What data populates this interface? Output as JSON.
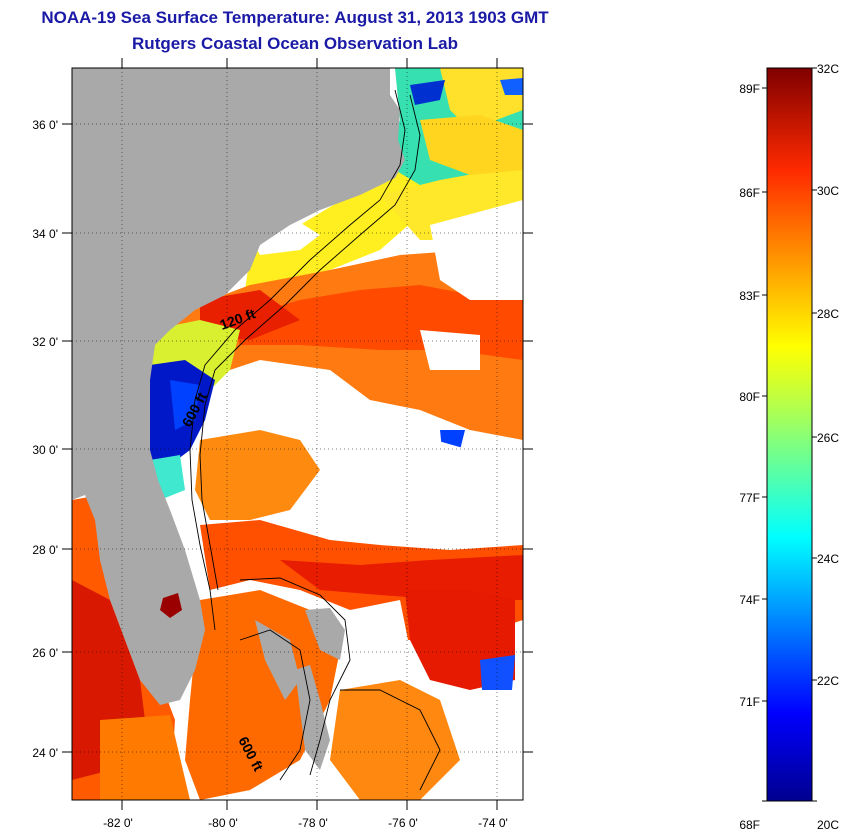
{
  "header": {
    "title": "NOAA-19 Sea Surface Temperature:  August 31, 2013 1903 GMT",
    "subtitle": "Rutgers Coastal Ocean Observation Lab"
  },
  "map": {
    "lon_labels": [
      "-82 0'",
      "-80 0'",
      "-78 0'",
      "-76 0'",
      "-74 0'"
    ],
    "lat_labels": [
      "36 0'",
      "34 0'",
      "32 0'",
      "30 0'",
      "28 0'",
      "26 0'",
      "24 0'"
    ],
    "contour_labels": [
      "120 ft",
      "600 ft",
      "600 ft"
    ],
    "colors": {
      "land": "#a9a9a9",
      "ocean_warm": "#ff4a00",
      "ocean_hot": "#d40000",
      "cloud": "#ffffff"
    }
  },
  "colorbar": {
    "fahrenheit_labels": [
      "89F",
      "86F",
      "83F",
      "80F",
      "77F",
      "74F",
      "71F",
      "68F"
    ],
    "celsius_labels": [
      "32C",
      "30C",
      "28C",
      "26C",
      "24C",
      "22C",
      "20C"
    ],
    "range_c": [
      20,
      32
    ],
    "colormap": "jet"
  }
}
